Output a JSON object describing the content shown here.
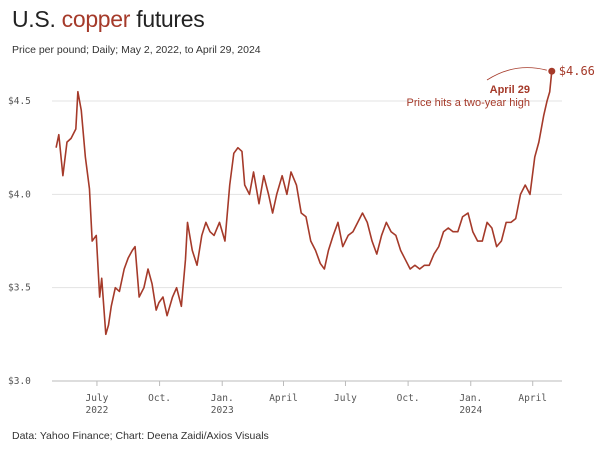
{
  "chart_data": {
    "type": "line",
    "title_parts": [
      "U.S. ",
      "copper",
      " futures"
    ],
    "subtitle": "Price per pound; Daily; May 2, 2022, to April 29, 2024",
    "source": "Data: Yahoo Finance; Chart: Deena Zaidi/Axios Visuals",
    "annotation": {
      "title": "April 29",
      "text": "Price hits a two-year high"
    },
    "end_value_label": "$4.66",
    "grid": true,
    "xlim": [
      "2022-04-26",
      "2024-05-14"
    ],
    "ylim": [
      3.0,
      4.72
    ],
    "yticks": [
      {
        "value": 3.0,
        "label": "$3.0"
      },
      {
        "value": 3.5,
        "label": "$3.5"
      },
      {
        "value": 4.0,
        "label": "$4.0"
      },
      {
        "value": 4.5,
        "label": "$4.5"
      }
    ],
    "xticks": [
      {
        "value": "2022-07-01",
        "label": "July",
        "year": "2022"
      },
      {
        "value": "2022-10-01",
        "label": "Oct."
      },
      {
        "value": "2023-01-01",
        "label": "Jan.",
        "year": "2023"
      },
      {
        "value": "2023-04-01",
        "label": "April"
      },
      {
        "value": "2023-07-01",
        "label": "July"
      },
      {
        "value": "2023-10-01",
        "label": "Oct."
      },
      {
        "value": "2024-01-01",
        "label": "Jan.",
        "year": "2024"
      },
      {
        "value": "2024-04-01",
        "label": "April"
      }
    ],
    "series": [
      {
        "name": "Copper",
        "color": "#a53a2a",
        "x": [
          "2022-05-02",
          "2022-05-06",
          "2022-05-12",
          "2022-05-18",
          "2022-05-24",
          "2022-05-31",
          "2022-06-03",
          "2022-06-08",
          "2022-06-14",
          "2022-06-20",
          "2022-06-24",
          "2022-06-30",
          "2022-07-05",
          "2022-07-08",
          "2022-07-14",
          "2022-07-18",
          "2022-07-22",
          "2022-07-28",
          "2022-08-03",
          "2022-08-10",
          "2022-08-16",
          "2022-08-22",
          "2022-08-26",
          "2022-09-01",
          "2022-09-08",
          "2022-09-14",
          "2022-09-20",
          "2022-09-26",
          "2022-09-30",
          "2022-10-06",
          "2022-10-12",
          "2022-10-20",
          "2022-10-26",
          "2022-11-02",
          "2022-11-08",
          "2022-11-11",
          "2022-11-18",
          "2022-11-25",
          "2022-12-02",
          "2022-12-08",
          "2022-12-14",
          "2022-12-20",
          "2022-12-28",
          "2023-01-05",
          "2023-01-12",
          "2023-01-18",
          "2023-01-24",
          "2023-01-30",
          "2023-02-03",
          "2023-02-10",
          "2023-02-16",
          "2023-02-24",
          "2023-03-03",
          "2023-03-10",
          "2023-03-16",
          "2023-03-22",
          "2023-03-30",
          "2023-04-06",
          "2023-04-12",
          "2023-04-20",
          "2023-04-27",
          "2023-05-04",
          "2023-05-11",
          "2023-05-18",
          "2023-05-25",
          "2023-05-31",
          "2023-06-06",
          "2023-06-13",
          "2023-06-20",
          "2023-06-27",
          "2023-07-05",
          "2023-07-12",
          "2023-07-19",
          "2023-07-26",
          "2023-08-02",
          "2023-08-09",
          "2023-08-16",
          "2023-08-23",
          "2023-08-30",
          "2023-09-06",
          "2023-09-13",
          "2023-09-20",
          "2023-09-27",
          "2023-10-04",
          "2023-10-11",
          "2023-10-18",
          "2023-10-25",
          "2023-11-01",
          "2023-11-08",
          "2023-11-15",
          "2023-11-22",
          "2023-11-29",
          "2023-12-06",
          "2023-12-13",
          "2023-12-20",
          "2023-12-28",
          "2024-01-04",
          "2024-01-11",
          "2024-01-18",
          "2024-01-25",
          "2024-02-01",
          "2024-02-08",
          "2024-02-15",
          "2024-02-22",
          "2024-02-29",
          "2024-03-07",
          "2024-03-14",
          "2024-03-21",
          "2024-03-28",
          "2024-04-04",
          "2024-04-10",
          "2024-04-17",
          "2024-04-22",
          "2024-04-26",
          "2024-04-29"
        ],
        "values": [
          4.25,
          4.32,
          4.1,
          4.28,
          4.3,
          4.35,
          4.55,
          4.45,
          4.2,
          4.03,
          3.75,
          3.78,
          3.45,
          3.55,
          3.25,
          3.3,
          3.4,
          3.5,
          3.48,
          3.6,
          3.66,
          3.7,
          3.72,
          3.45,
          3.5,
          3.6,
          3.52,
          3.38,
          3.42,
          3.45,
          3.35,
          3.45,
          3.5,
          3.4,
          3.65,
          3.85,
          3.7,
          3.62,
          3.78,
          3.85,
          3.8,
          3.78,
          3.85,
          3.75,
          4.05,
          4.22,
          4.25,
          4.23,
          4.05,
          4.0,
          4.12,
          3.95,
          4.1,
          4.0,
          3.9,
          4.0,
          4.1,
          4.0,
          4.12,
          4.05,
          3.9,
          3.88,
          3.75,
          3.7,
          3.63,
          3.6,
          3.7,
          3.78,
          3.85,
          3.72,
          3.78,
          3.8,
          3.85,
          3.9,
          3.85,
          3.75,
          3.68,
          3.78,
          3.85,
          3.8,
          3.78,
          3.7,
          3.65,
          3.6,
          3.62,
          3.6,
          3.62,
          3.62,
          3.68,
          3.72,
          3.8,
          3.82,
          3.8,
          3.8,
          3.88,
          3.9,
          3.8,
          3.75,
          3.75,
          3.85,
          3.82,
          3.72,
          3.75,
          3.85,
          3.85,
          3.87,
          4.0,
          4.05,
          4.0,
          4.2,
          4.28,
          4.42,
          4.5,
          4.55,
          4.66
        ]
      }
    ]
  }
}
